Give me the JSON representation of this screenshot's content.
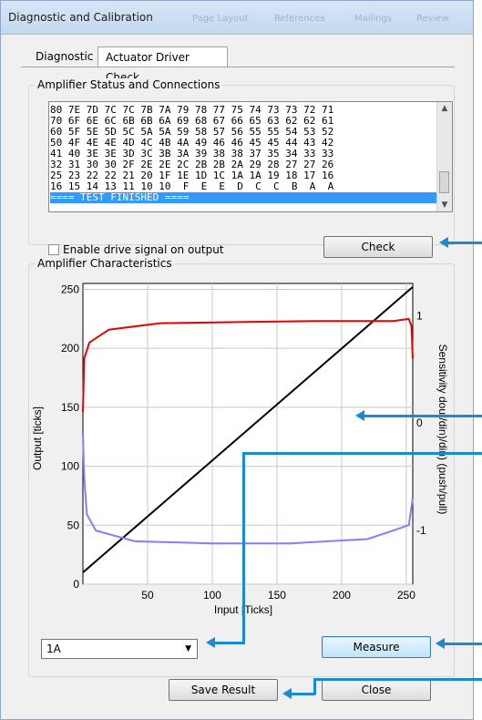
{
  "window": {
    "title": "Diagnostic and Calibration",
    "ghost_tabs": [
      "Page Layout",
      "References",
      "Mailings",
      "Review"
    ]
  },
  "tabs": [
    {
      "label": "Diagnostic"
    },
    {
      "label": "Actuator Driver Check"
    }
  ],
  "amplifier_status": {
    "group_title": "Amplifier Status and Connections",
    "lines": [
      "80 7E 7D 7C 7C 7B 7A 79 78 77 75 74 73 73 72 71",
      "70 6F 6E 6C 6B 6B 6A 69 68 67 66 65 63 62 62 61",
      "60 5F 5E 5D 5C 5A 5A 59 58 57 56 55 55 54 53 52",
      "50 4F 4E 4E 4D 4C 4B 4A 49 46 46 45 45 44 43 42",
      "41 40 3E 3E 3D 3C 3B 3A 39 38 38 37 35 34 33 33",
      "32 31 30 30 2F 2E 2E 2C 2B 2B 2A 29 28 27 27 26",
      "25 23 22 22 21 20 1F 1E 1D 1C 1A 1A 19 18 17 16",
      "16 15 14 13 11 10 10  F  E  E  D  C  C  B  A  A",
      "==== TEST FINISHED ===="
    ],
    "selected_index": 8,
    "checkbox_label": "Enable drive signal on output",
    "checkbox_checked": false,
    "check_button": "Check"
  },
  "characteristics": {
    "group_title": "Amplifier Characteristics",
    "combo_value": "1A",
    "measure_button": "Measure"
  },
  "footer": {
    "save_button": "Save Result",
    "close_button": "Close"
  },
  "chart_data": {
    "type": "line",
    "xlabel": "Input [Ticks]",
    "ylabel": "Output [ticks]",
    "y2label": "Sensitivity dout/din)/din) (push/pull)",
    "xlim": [
      0,
      255
    ],
    "ylim": [
      0,
      255
    ],
    "y2lim": [
      -1.5,
      1.3
    ],
    "xticks": [
      50,
      100,
      150,
      200,
      250
    ],
    "yticks": [
      0,
      50,
      100,
      150,
      200,
      250
    ],
    "y2ticks": [
      -1,
      0,
      1
    ],
    "grid": true,
    "series": [
      {
        "color": "#000000",
        "axis": "y",
        "x": [
          0,
          255
        ],
        "y": [
          10,
          252
        ]
      },
      {
        "color": "#e60000",
        "axis": "y2",
        "x": [
          0,
          1,
          5,
          20,
          60,
          120,
          180,
          240,
          252,
          254,
          255
        ],
        "y": [
          0.1,
          0.6,
          0.75,
          0.87,
          0.93,
          0.94,
          0.95,
          0.95,
          0.97,
          0.9,
          0.6
        ]
      },
      {
        "color": "#7f7fff",
        "axis": "y2",
        "x": [
          0,
          1,
          3,
          10,
          40,
          100,
          160,
          220,
          240,
          252,
          255
        ],
        "y": [
          -0.1,
          -0.5,
          -0.85,
          -1.0,
          -1.1,
          -1.12,
          -1.12,
          -1.08,
          -1.0,
          -0.95,
          -0.7
        ]
      }
    ]
  }
}
